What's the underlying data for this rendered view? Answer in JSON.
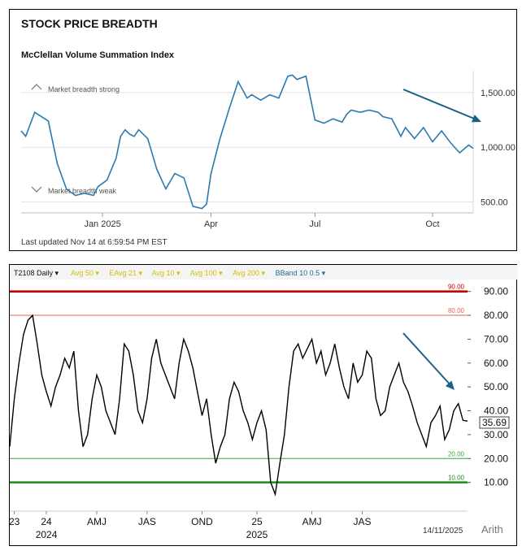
{
  "chart_data": [
    {
      "type": "line",
      "title": "STOCK PRICE BREADTH",
      "subtitle": "McClellan Volume Summation Index",
      "annotations": {
        "strong": "Market breadth strong",
        "weak": "Market breadth weak"
      },
      "footer": "Last updated Nov 14 at 6:59:54 PM EST",
      "x_ticks": [
        "Jan 2025",
        "Apr",
        "Jul",
        "Oct"
      ],
      "y_ticks": [
        "1,500.00",
        "1,000.00",
        "500.00"
      ],
      "ylim": [
        400,
        1700
      ],
      "line_color": "#2a7ab0",
      "trend_arrow_color": "#1f5f86",
      "x": [
        0,
        1,
        3,
        6,
        8,
        10,
        12,
        14,
        16,
        17,
        19,
        21,
        22,
        23,
        24,
        25,
        26,
        28,
        30,
        32,
        34,
        36,
        38,
        40,
        41,
        42,
        44,
        46,
        48,
        50,
        51,
        53,
        55,
        57,
        59,
        60,
        61,
        63,
        65,
        67,
        69,
        71,
        72,
        73,
        75,
        77,
        79,
        80,
        82,
        84,
        85,
        87,
        89,
        91,
        93,
        95,
        97,
        99,
        100
      ],
      "values": [
        1150,
        1100,
        1320,
        1240,
        850,
        620,
        560,
        580,
        560,
        640,
        700,
        900,
        1100,
        1160,
        1120,
        1100,
        1160,
        1080,
        800,
        620,
        760,
        720,
        460,
        440,
        480,
        760,
        1080,
        1350,
        1600,
        1450,
        1480,
        1430,
        1480,
        1450,
        1650,
        1660,
        1620,
        1650,
        1250,
        1220,
        1260,
        1230,
        1300,
        1340,
        1320,
        1340,
        1320,
        1280,
        1260,
        1100,
        1180,
        1080,
        1180,
        1050,
        1150,
        1040,
        950,
        1020,
        990
      ]
    },
    {
      "type": "line",
      "header": {
        "symbol": "T2108 Daily",
        "items": [
          "Avg 50",
          "EAvg 21",
          "Avg 10",
          "Avg 100",
          "Avg 200",
          "BBand 10 0.5"
        ]
      },
      "levels": [
        {
          "label": "90.00",
          "value": 90,
          "color": "#c00000"
        },
        {
          "label": "80.00",
          "value": 80,
          "color": "#e06060"
        },
        {
          "label": "20.00",
          "value": 20,
          "color": "#3aa53a"
        },
        {
          "label": "10.00",
          "value": 10,
          "color": "#1a8c1a"
        }
      ],
      "y_ticks": [
        "90.00",
        "80.00",
        "70.00",
        "60.00",
        "50.00",
        "40.00",
        "30.00",
        "20.00",
        "10.00"
      ],
      "last_value": "35.69",
      "ylim": [
        0,
        95
      ],
      "x_ticks": [
        "23",
        "24",
        "AMJ",
        "JAS",
        "OND",
        "25",
        "AMJ",
        "JAS"
      ],
      "year_labels": [
        "2024",
        "2025"
      ],
      "date_label": "14/11/2025",
      "scale_label": "Arith",
      "line_color": "#000000",
      "trend_arrow_color": "#1f5f86",
      "x": [
        0,
        1,
        2,
        3,
        4,
        5,
        6,
        7,
        8,
        9,
        10,
        11,
        12,
        13,
        14,
        15,
        16,
        17,
        18,
        19,
        20,
        21,
        22,
        23,
        24,
        25,
        26,
        27,
        28,
        29,
        30,
        31,
        32,
        33,
        34,
        35,
        36,
        37,
        38,
        39,
        40,
        41,
        42,
        43,
        44,
        45,
        46,
        47,
        48,
        49,
        50,
        51,
        52,
        53,
        54,
        55,
        56,
        57,
        58,
        59,
        60,
        61,
        62,
        63,
        64,
        65,
        66,
        67,
        68,
        69,
        70,
        71,
        72,
        73,
        74,
        75,
        76,
        77,
        78,
        79,
        80,
        81,
        82,
        83,
        84,
        85,
        86,
        87,
        88,
        89,
        90,
        91,
        92,
        93,
        94,
        95,
        96,
        97,
        98,
        99,
        100
      ],
      "values": [
        25,
        45,
        60,
        72,
        78,
        80,
        68,
        55,
        48,
        42,
        50,
        55,
        62,
        58,
        65,
        40,
        25,
        30,
        45,
        55,
        50,
        40,
        35,
        30,
        45,
        68,
        65,
        55,
        40,
        35,
        45,
        62,
        70,
        60,
        55,
        50,
        45,
        60,
        70,
        65,
        58,
        48,
        38,
        45,
        30,
        18,
        25,
        30,
        45,
        52,
        48,
        40,
        35,
        28,
        35,
        40,
        32,
        10,
        5,
        18,
        30,
        50,
        65,
        68,
        62,
        66,
        70,
        60,
        65,
        55,
        60,
        68,
        58,
        50,
        45,
        60,
        52,
        55,
        65,
        62,
        45,
        38,
        40,
        50,
        55,
        60,
        52,
        48,
        42,
        35,
        30,
        25,
        35,
        38,
        42,
        28,
        32,
        40,
        43,
        36,
        35.69
      ]
    }
  ]
}
